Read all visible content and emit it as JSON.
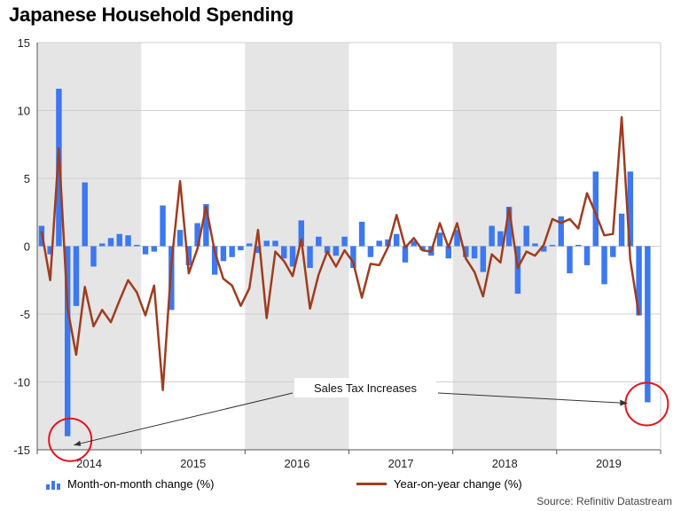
{
  "title": "Japanese Household Spending",
  "source": "Source: Refinitiv Datastream",
  "colors": {
    "mom": "#3c78f0",
    "yoy": "#a03c1e",
    "band": "#e5e5e5",
    "circle": "#e8121b"
  },
  "chart_data": {
    "type": "bar+line",
    "title": "Japanese Household Spending",
    "ylim": [
      -15,
      15
    ],
    "yticks": [
      15,
      10,
      5,
      0,
      -5,
      -10,
      -15
    ],
    "x_start": "2014-01",
    "x_end": "2019-12",
    "years": [
      "2014",
      "2015",
      "2016",
      "2017",
      "2018",
      "2019"
    ],
    "shaded_years": [
      "2014",
      "2016",
      "2018"
    ],
    "legend_position": "bottom",
    "series": [
      {
        "name": "Month-on-month change (%)",
        "type": "bar",
        "values": [
          1.5,
          -0.6,
          11.6,
          -14.0,
          -4.4,
          4.7,
          -1.5,
          0.2,
          0.6,
          0.9,
          0.8,
          0.1,
          -0.6,
          -0.4,
          3.0,
          -4.7,
          1.2,
          -1.4,
          1.7,
          3.1,
          -2.1,
          -1.1,
          -0.8,
          -0.3,
          0.2,
          -0.5,
          0.4,
          0.4,
          -0.9,
          -1.5,
          1.9,
          -1.6,
          0.7,
          -0.5,
          -0.7,
          0.7,
          -1.6,
          1.8,
          -0.8,
          0.4,
          0.5,
          0.9,
          -1.2,
          0.4,
          -0.3,
          -0.7,
          1.0,
          -0.9,
          1.2,
          -0.8,
          -0.9,
          -1.9,
          1.5,
          1.1,
          2.9,
          -3.5,
          1.5,
          0.2,
          -0.4,
          0.1,
          2.2,
          -2.0,
          0.1,
          -1.4,
          5.5,
          -2.8,
          -0.8,
          2.4,
          5.5,
          -5.1,
          -11.5,
          0.0
        ]
      },
      {
        "name": "Year-on-year change (%)",
        "type": "line",
        "values": [
          1.1,
          -2.5,
          7.2,
          -4.6,
          -8.0,
          -3.0,
          -5.9,
          -4.7,
          -5.6,
          -4.0,
          -2.5,
          -3.4,
          -5.1,
          -2.9,
          -10.6,
          -1.3,
          4.8,
          -2.0,
          -0.2,
          2.9,
          -0.4,
          -2.4,
          -2.9,
          -4.4,
          -3.1,
          1.2,
          -5.3,
          -0.4,
          -1.1,
          -2.2,
          0.5,
          -4.6,
          -2.1,
          -0.4,
          -1.5,
          -0.3,
          -1.2,
          -3.8,
          -1.3,
          -1.4,
          -0.1,
          2.3,
          -0.1,
          0.6,
          -0.3,
          -0.4,
          1.7,
          -0.1,
          1.7,
          -0.9,
          -1.9,
          -3.7,
          -0.6,
          -1.2,
          2.8,
          -1.6,
          -0.4,
          -0.7,
          0.1,
          2.0,
          1.7,
          2.0,
          1.3,
          3.9,
          2.4,
          0.8,
          0.9,
          9.5,
          -1.0,
          -5.1,
          null,
          null
        ]
      }
    ],
    "annotations": [
      {
        "text": "Sales Tax Increases",
        "targets": [
          3,
          70
        ]
      }
    ]
  }
}
